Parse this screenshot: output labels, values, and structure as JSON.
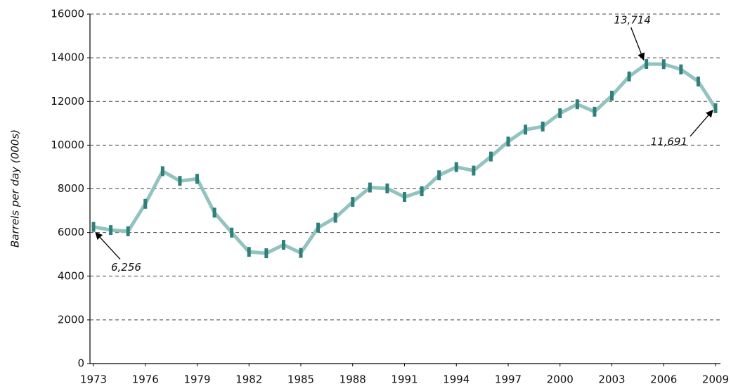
{
  "chart_data": {
    "type": "line",
    "y_label": "Barrels per day (000s)",
    "x": [
      1973,
      1974,
      1975,
      1976,
      1977,
      1978,
      1979,
      1980,
      1981,
      1982,
      1983,
      1984,
      1985,
      1986,
      1987,
      1988,
      1989,
      1990,
      1991,
      1992,
      1993,
      1994,
      1995,
      1996,
      1997,
      1998,
      1999,
      2000,
      2001,
      2002,
      2003,
      2004,
      2005,
      2006,
      2007,
      2008,
      2009
    ],
    "values": [
      6256,
      6112,
      6056,
      7313,
      8807,
      8363,
      8456,
      6909,
      5996,
      5113,
      5051,
      5437,
      5067,
      6224,
      6678,
      7402,
      8061,
      8018,
      7627,
      7888,
      8620,
      8996,
      8835,
      9478,
      10162,
      10708,
      10852,
      11459,
      11871,
      11530,
      12264,
      13145,
      13714,
      13707,
      13468,
      12915,
      11691
    ],
    "value_labels": [
      "6,256",
      null,
      null,
      null,
      null,
      null,
      null,
      null,
      null,
      null,
      null,
      null,
      null,
      null,
      null,
      null,
      null,
      null,
      null,
      null,
      null,
      null,
      null,
      null,
      null,
      null,
      null,
      null,
      null,
      null,
      null,
      null,
      "13,714",
      null,
      null,
      null,
      "11,691"
    ],
    "color": "#93c3bf",
    "marker_color": "#2f7f7a",
    "xlim": [
      1973,
      2009
    ],
    "xticks": [
      1973,
      1976,
      1979,
      1982,
      1985,
      1988,
      1991,
      1994,
      1997,
      2000,
      2003,
      2006,
      2009
    ],
    "ylim": [
      0,
      16000
    ],
    "yticks": [
      0,
      2000,
      4000,
      6000,
      8000,
      10000,
      12000,
      14000,
      16000
    ],
    "grid": true
  }
}
